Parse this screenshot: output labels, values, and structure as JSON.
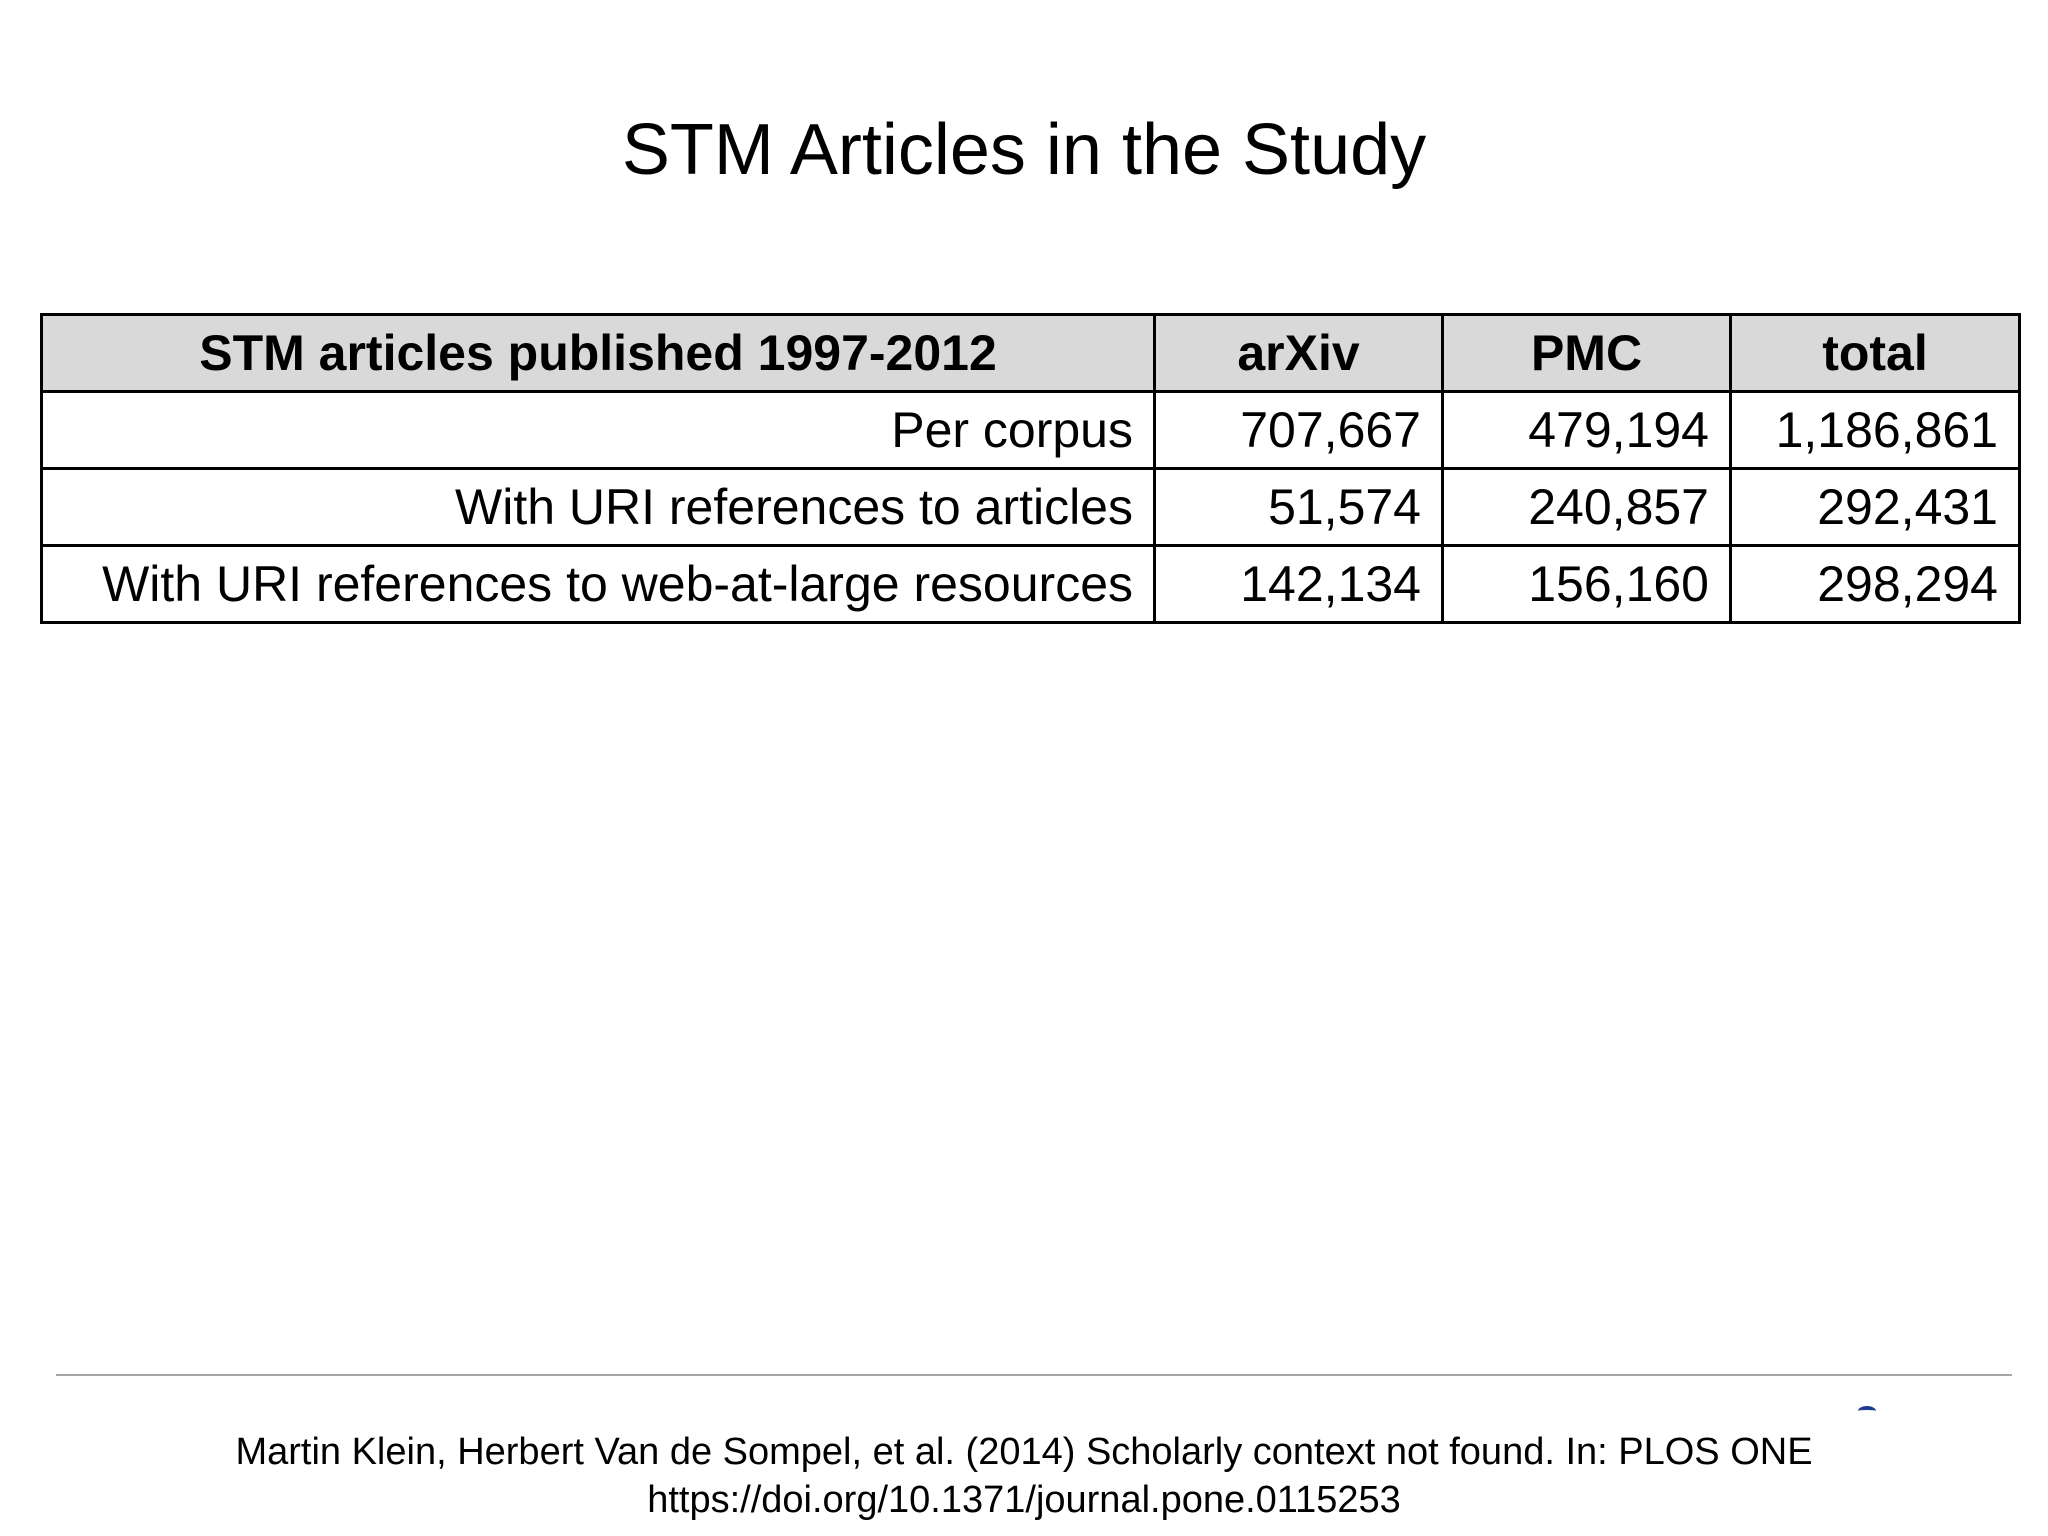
{
  "slide": {
    "title": "STM Articles in the Study"
  },
  "table": {
    "headers": [
      "STM articles published 1997-2012",
      "arXiv",
      "PMC",
      "total"
    ],
    "rows": [
      [
        "Per corpus",
        "707,667",
        "479,194",
        "1,186,861"
      ],
      [
        "With URI references to articles",
        "51,574",
        "240,857",
        "292,431"
      ],
      [
        "With URI references to web-at-large resources",
        "142,134",
        "156,160",
        "298,294"
      ]
    ]
  },
  "footer": {
    "citation_line1": "Martin Klein, Herbert Van de Sompel, et al. (2014) Scholarly context not found. In: PLOS ONE",
    "citation_line2": "https://doi.org/10.1371/journal.pone.0115253"
  },
  "colors": {
    "header_background": "#d9d9d9",
    "border": "#000000",
    "rule": "#a6a6a6"
  }
}
